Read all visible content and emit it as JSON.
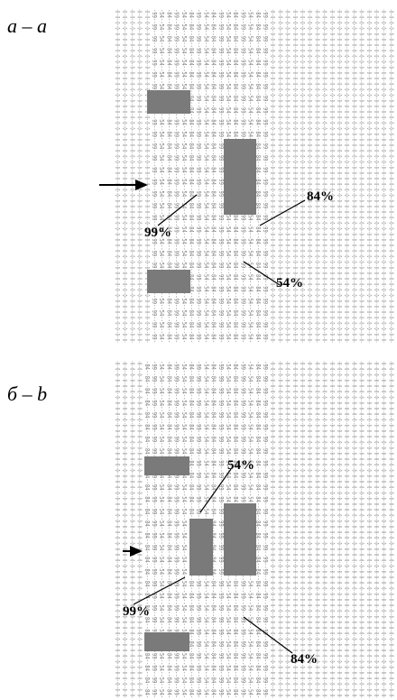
{
  "panels": [
    {
      "label": "a – a",
      "grid_value": "0",
      "zone_values": [
        "54",
        "84",
        "99"
      ],
      "callouts": [
        {
          "text": "99%"
        },
        {
          "text": "84%"
        },
        {
          "text": "54%"
        }
      ],
      "obstacles": [
        "wall",
        "wall",
        "wall"
      ],
      "arrow": "inflow"
    },
    {
      "label": "б – b",
      "grid_value": "0",
      "zone_values": [
        "54",
        "84",
        "99"
      ],
      "callouts": [
        {
          "text": "54%"
        },
        {
          "text": "99%"
        },
        {
          "text": "84%"
        }
      ],
      "obstacles": [
        "wall",
        "wall",
        "wall",
        "wall"
      ],
      "arrow": "inflow"
    }
  ],
  "colors": {
    "obstacle": "#7a7a7a",
    "grid_text": "#777777",
    "arrow": "#000000"
  }
}
